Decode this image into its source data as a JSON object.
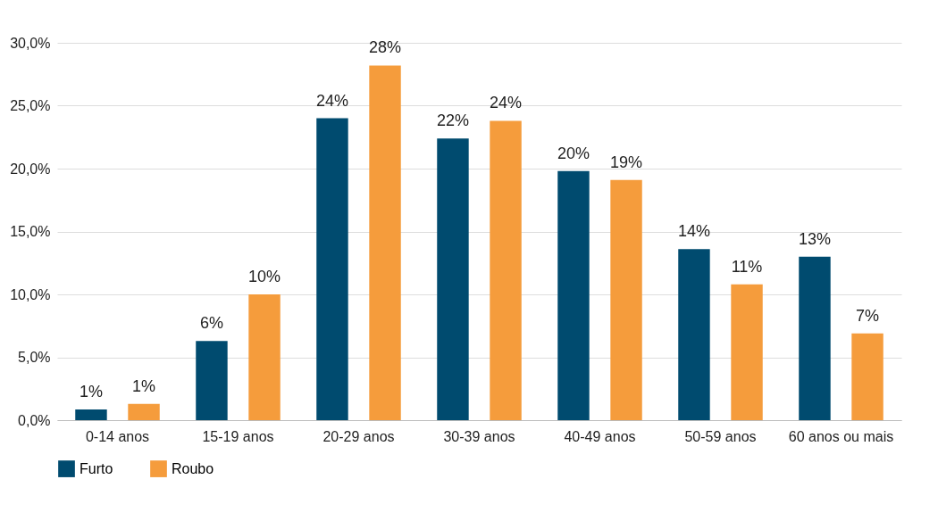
{
  "chart_data": {
    "type": "bar",
    "categories": [
      "0-14 anos",
      "15-19 anos",
      "20-29 anos",
      "30-39 anos",
      "40-49 anos",
      "50-59 anos",
      "60 anos ou mais"
    ],
    "series": [
      {
        "name": "Furto",
        "color": "#004b6f",
        "values": [
          0.85,
          6.3,
          24.0,
          22.4,
          19.8,
          13.6,
          13.0
        ],
        "value_labels": [
          "1%",
          "6%",
          "24%",
          "22%",
          "20%",
          "14%",
          "13%"
        ]
      },
      {
        "name": "Roubo",
        "color": "#f59c3c",
        "values": [
          1.3,
          10.0,
          28.2,
          23.8,
          19.1,
          10.8,
          6.9
        ],
        "value_labels": [
          "1%",
          "10%",
          "28%",
          "24%",
          "19%",
          "11%",
          "7%"
        ]
      }
    ],
    "ylim": [
      0,
      30
    ],
    "yticks": [
      {
        "value": 0,
        "label": "0,0%"
      },
      {
        "value": 5,
        "label": "5,0%"
      },
      {
        "value": 10,
        "label": "10,0%"
      },
      {
        "value": 15,
        "label": "15,0%"
      },
      {
        "value": 20,
        "label": "20,0%"
      },
      {
        "value": 25,
        "label": "25,0%"
      },
      {
        "value": 30,
        "label": "30,0%"
      }
    ],
    "grid": "y",
    "legend": "bottom"
  }
}
